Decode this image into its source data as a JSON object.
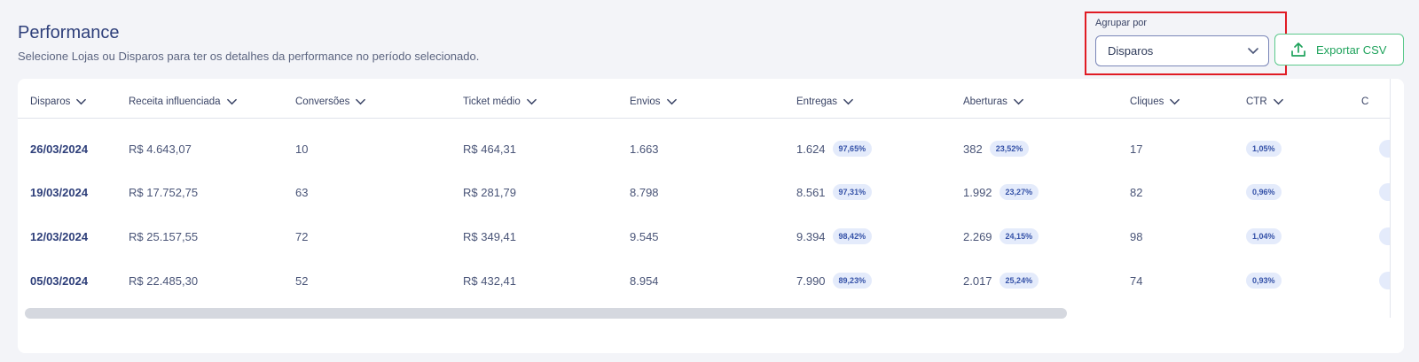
{
  "header": {
    "title": "Performance",
    "subtitle": "Selecione Lojas ou Disparos para ter os detalhes da performance no período selecionado."
  },
  "group_by": {
    "label": "Agrupar por",
    "selected": "Disparos"
  },
  "export": {
    "label": "Exportar CSV"
  },
  "table": {
    "columns": [
      "Disparos",
      "Receita influenciada",
      "Conversões",
      "Ticket médio",
      "Envios",
      "Entregas",
      "Aberturas",
      "Cliques",
      "CTR",
      "C"
    ],
    "rows": [
      {
        "date": "26/03/2024",
        "receita": "R$ 4.643,07",
        "conversoes": "10",
        "ticket": "R$ 464,31",
        "envios": "1.663",
        "entregas": "1.624",
        "entregas_pct": "97,65%",
        "aberturas": "382",
        "aberturas_pct": "23,52%",
        "cliques": "17",
        "ctr": "1,05%"
      },
      {
        "date": "19/03/2024",
        "receita": "R$ 17.752,75",
        "conversoes": "63",
        "ticket": "R$ 281,79",
        "envios": "8.798",
        "entregas": "8.561",
        "entregas_pct": "97,31%",
        "aberturas": "1.992",
        "aberturas_pct": "23,27%",
        "cliques": "82",
        "ctr": "0,96%"
      },
      {
        "date": "12/03/2024",
        "receita": "R$ 25.157,55",
        "conversoes": "72",
        "ticket": "R$ 349,41",
        "envios": "9.545",
        "entregas": "9.394",
        "entregas_pct": "98,42%",
        "aberturas": "2.269",
        "aberturas_pct": "24,15%",
        "cliques": "98",
        "ctr": "1,04%"
      },
      {
        "date": "05/03/2024",
        "receita": "R$ 22.485,30",
        "conversoes": "52",
        "ticket": "R$ 432,41",
        "envios": "8.954",
        "entregas": "7.990",
        "entregas_pct": "89,23%",
        "aberturas": "2.017",
        "aberturas_pct": "25,24%",
        "cliques": "74",
        "ctr": "0,93%"
      }
    ]
  },
  "colors": {
    "highlight": "#e01b24",
    "accent_green": "#1fa35c",
    "badge_bg": "#e4ebfb",
    "badge_text": "#3552a8"
  }
}
